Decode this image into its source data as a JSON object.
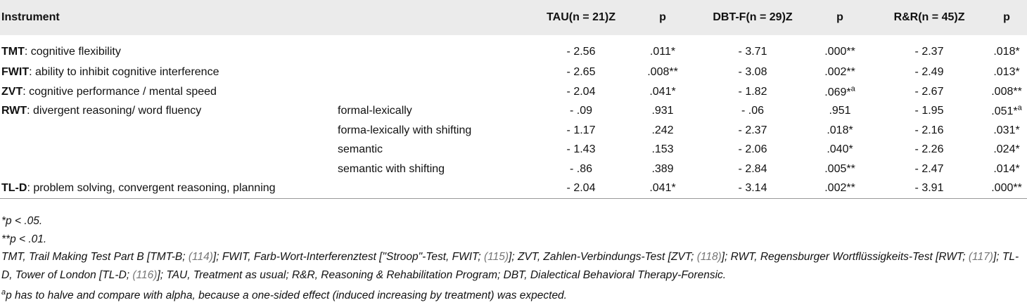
{
  "table": {
    "header": [
      "Instrument",
      "TAU(n = 21)Z",
      "p",
      "DBT-F(n = 29)Z",
      "p",
      "R&R(n = 45)Z",
      "p"
    ],
    "rows": [
      {
        "abbr": "TMT",
        "desc": ": cognitive flexibility",
        "cells": [
          "- 2.56",
          ".011*",
          "- 3.71",
          ".000**",
          "- 2.37",
          ".018*"
        ]
      },
      {
        "abbr": "FWIT",
        "desc": ": ability to inhibit cognitive interference",
        "cells": [
          "- 2.65",
          ".008**",
          "- 3.08",
          ".002**",
          "- 2.49",
          ".013*"
        ]
      },
      {
        "abbr": "ZVT",
        "desc": ": cognitive performance / mental speed",
        "cells": [
          "- 2.04",
          ".041*",
          "- 1.82",
          {
            "text": ".069*",
            "sup": "a"
          },
          "- 2.67",
          ".008**"
        ]
      },
      {
        "abbr": "RWT",
        "desc": ": divergent reasoning/ word fluency",
        "sub": "formal-lexically",
        "cells": [
          "- .09",
          ".931",
          "- .06",
          ".951",
          "- 1.95",
          {
            "text": ".051*",
            "sup": "a"
          }
        ]
      },
      {
        "sub": "forma-lexically with shifting",
        "cells": [
          "- 1.17",
          ".242",
          "- 2.37",
          ".018*",
          "- 2.16",
          ".031*"
        ]
      },
      {
        "sub": "semantic",
        "cells": [
          "- 1.43",
          ".153",
          "- 2.06",
          ".040*",
          "- 2.26",
          ".024*"
        ]
      },
      {
        "sub": "semantic with shifting",
        "cells": [
          "- .86",
          ".389",
          "- 2.84",
          ".005**",
          "- 2.47",
          ".014*"
        ]
      },
      {
        "abbr": "TL-D",
        "desc": ": problem solving, convergent reasoning, planning",
        "cells": [
          "- 2.04",
          ".041*",
          "- 3.14",
          ".002**",
          "- 3.91",
          ".000**"
        ]
      }
    ]
  },
  "notes": {
    "sig1": "*p < .05.",
    "sig2": "**p < .01.",
    "abbreviations": [
      {
        "t": "TMT, Trail Making Test Part B [TMT-B; "
      },
      {
        "ref": "(114)"
      },
      {
        "t": "]; FWIT, Farb-Wort-Interferenztest [\"Stroop\"-Test, FWIT; "
      },
      {
        "ref": "(115)"
      },
      {
        "t": "]; ZVT, Zahlen-Verbindungs-Test [ZVT; "
      },
      {
        "ref": "(118)"
      },
      {
        "t": "]; RWT, Regensburger Wortflüssigkeits-Test [RWT; "
      },
      {
        "ref": "(117)"
      },
      {
        "t": "]; TL-D, Tower of London [TL-D; "
      },
      {
        "ref": "(116)"
      },
      {
        "t": "]; TAU, Treatment as usual; R&R, Reasoning & Rehabilitation Program; DBT, Dialectical Behavioral Therapy-Forensic."
      }
    ],
    "one_sided": {
      "sup": "a",
      "text": "p has to halve and compare with alpha, because a one-sided effect (induced increasing by treatment) was expected."
    }
  }
}
